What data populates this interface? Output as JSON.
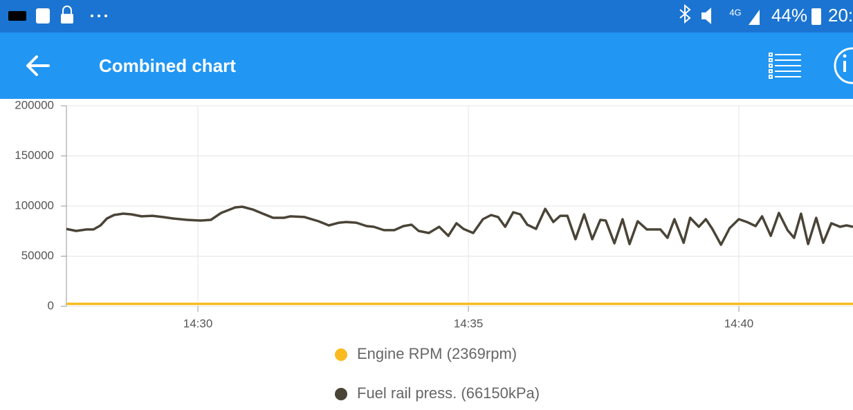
{
  "status_bar": {
    "network": "4G",
    "battery": "44%",
    "clock": "20:"
  },
  "app_bar": {
    "title": "Combined chart"
  },
  "chart_data": {
    "type": "line",
    "x": [
      867.57,
      867.75,
      867.94,
      868.07,
      868.2,
      868.32,
      868.45,
      868.62,
      868.77,
      868.96,
      869.16,
      869.35,
      869.54,
      869.8,
      870.05,
      870.24,
      870.43,
      870.69,
      870.82,
      871.01,
      871.2,
      871.39,
      871.59,
      871.71,
      871.97,
      872.23,
      872.42,
      872.61,
      872.74,
      872.93,
      873.12,
      873.25,
      873.44,
      873.63,
      873.8,
      873.95,
      874.08,
      874.27,
      874.46,
      874.63,
      874.78,
      874.91,
      875.09,
      875.27,
      875.42,
      875.55,
      875.68,
      875.83,
      875.96,
      876.09,
      876.25,
      876.42,
      876.57,
      876.7,
      876.83,
      876.98,
      877.14,
      877.29,
      877.44,
      877.54,
      877.7,
      877.85,
      877.98,
      878.13,
      878.3,
      878.55,
      878.68,
      878.81,
      878.98,
      879.1,
      879.26,
      879.39,
      879.51,
      879.67,
      879.83,
      880.0,
      880.15,
      880.31,
      880.43,
      880.59,
      880.74,
      880.9,
      881.02,
      881.15,
      881.28,
      881.43,
      881.56,
      881.71,
      881.87,
      881.99,
      882.11
    ],
    "series": [
      {
        "name": "Engine RPM (2369rpm)",
        "color": "#f9bb1f",
        "values": [
          2400,
          2400,
          2400,
          2400,
          2400,
          2400,
          2400,
          2400,
          2400,
          2400,
          2400,
          2400,
          2400,
          2400,
          2400,
          2400,
          2400,
          2400,
          2400,
          2400,
          2400,
          2400,
          2400,
          2400,
          2400,
          2400,
          2400,
          2400,
          2400,
          2400,
          2400,
          2400,
          2400,
          2400,
          2400,
          2400,
          2400,
          2400,
          2400,
          2400,
          2400,
          2400,
          2400,
          2400,
          2400,
          2400,
          2400,
          2400,
          2400,
          2400,
          2400,
          2400,
          2400,
          2400,
          2400,
          2400,
          2400,
          2400,
          2400,
          2400,
          2400,
          2400,
          2400,
          2400,
          2400,
          2400,
          2400,
          2400,
          2400,
          2400,
          2400,
          2400,
          2400,
          2400,
          2400,
          2400,
          2400,
          2400,
          2400,
          2400,
          2400,
          2400,
          2400,
          2400,
          2400,
          2400,
          2400,
          2400,
          2400,
          2400,
          2400
        ]
      },
      {
        "name": "Fuel rail press. (66150kPa)",
        "color": "#4a4437",
        "values": [
          77200,
          75200,
          76600,
          76600,
          80700,
          87600,
          91000,
          92400,
          91700,
          89700,
          90300,
          89000,
          87600,
          86200,
          85500,
          86200,
          93100,
          98600,
          99300,
          96600,
          92400,
          88300,
          88300,
          89700,
          89000,
          84800,
          80700,
          83400,
          84100,
          83400,
          80000,
          79300,
          75900,
          75900,
          80000,
          81400,
          75200,
          73100,
          79300,
          70300,
          82800,
          77200,
          73100,
          86900,
          91000,
          89000,
          79300,
          93800,
          91700,
          81400,
          77200,
          97200,
          84100,
          90300,
          90300,
          66900,
          91700,
          66900,
          86200,
          85500,
          62800,
          86900,
          62100,
          84800,
          76600,
          76600,
          68300,
          86900,
          63400,
          88300,
          79300,
          86900,
          77200,
          61400,
          77900,
          86900,
          84100,
          80000,
          89700,
          70300,
          93100,
          75900,
          68300,
          92400,
          62100,
          88300,
          63400,
          82800,
          79300,
          80700,
          79300
        ]
      }
    ],
    "xlim": [
      867.57,
      882.11
    ],
    "xticks": [
      {
        "value": 870,
        "label": "14:30"
      },
      {
        "value": 875,
        "label": "14:35"
      },
      {
        "value": 880,
        "label": "14:40"
      }
    ],
    "ylim": [
      0,
      200000
    ],
    "yticks": [
      0,
      50000,
      100000,
      150000,
      200000
    ],
    "grid": true
  }
}
